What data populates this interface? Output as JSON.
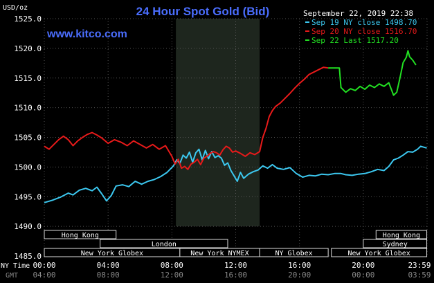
{
  "chart_data": {
    "type": "line",
    "title": "24 Hour Spot Gold (Bid)",
    "watermark": "www.kitco.com",
    "date_label": "September 22, 2019 22:38",
    "y_unit": "USD/oz",
    "ylim": [
      1485,
      1525
    ],
    "yticks": [
      1485,
      1490,
      1495,
      1500,
      1505,
      1510,
      1515,
      1520,
      1525
    ],
    "ytick_labels": [
      "1485.0",
      "1490.0",
      "1495.0",
      "1500.0",
      "1505.0",
      "1510.0",
      "1515.0",
      "1520.0",
      "1525.0"
    ],
    "xlim": [
      0,
      24
    ],
    "xticks": [
      0,
      4,
      8,
      12,
      16,
      20,
      24
    ],
    "ny_time_title": "NY Time",
    "gmt_title": "GMT",
    "ny_time_labels": [
      "00:00",
      "04:00",
      "08:00",
      "12:00",
      "16:00",
      "20:00",
      "23:59"
    ],
    "gmt_labels": [
      "04:00",
      "08:00",
      "12:00",
      "16:00",
      "20:00",
      "00:00",
      "03:59"
    ],
    "shaded_hours": [
      8.25,
      13.5
    ],
    "grid": true,
    "series": [
      {
        "name": "Sep 19 NY close 1498.70",
        "color": "#3cc8f0",
        "points": [
          [
            0,
            1494.0
          ],
          [
            0.5,
            1494.4
          ],
          [
            1.0,
            1494.9
          ],
          [
            1.5,
            1495.6
          ],
          [
            1.8,
            1495.3
          ],
          [
            2.2,
            1496.1
          ],
          [
            2.6,
            1496.4
          ],
          [
            3.0,
            1496.0
          ],
          [
            3.3,
            1496.6
          ],
          [
            3.6,
            1495.5
          ],
          [
            3.9,
            1494.3
          ],
          [
            4.2,
            1495.2
          ],
          [
            4.5,
            1496.8
          ],
          [
            4.9,
            1497.0
          ],
          [
            5.3,
            1496.7
          ],
          [
            5.7,
            1497.6
          ],
          [
            6.1,
            1497.1
          ],
          [
            6.5,
            1497.6
          ],
          [
            6.9,
            1497.9
          ],
          [
            7.3,
            1498.4
          ],
          [
            7.7,
            1499.1
          ],
          [
            8.1,
            1500.2
          ],
          [
            8.3,
            1501.2
          ],
          [
            8.5,
            1500.6
          ],
          [
            8.7,
            1502.0
          ],
          [
            8.9,
            1501.5
          ],
          [
            9.1,
            1502.5
          ],
          [
            9.3,
            1500.8
          ],
          [
            9.5,
            1502.4
          ],
          [
            9.7,
            1503.0
          ],
          [
            9.9,
            1501.2
          ],
          [
            10.1,
            1502.8
          ],
          [
            10.3,
            1501.4
          ],
          [
            10.5,
            1502.6
          ],
          [
            10.7,
            1501.6
          ],
          [
            10.9,
            1501.9
          ],
          [
            11.1,
            1501.5
          ],
          [
            11.3,
            1500.3
          ],
          [
            11.5,
            1500.7
          ],
          [
            11.7,
            1499.4
          ],
          [
            11.9,
            1498.5
          ],
          [
            12.1,
            1497.6
          ],
          [
            12.3,
            1499.1
          ],
          [
            12.5,
            1498.1
          ],
          [
            12.8,
            1498.8
          ],
          [
            13.1,
            1499.2
          ],
          [
            13.4,
            1499.5
          ],
          [
            13.7,
            1500.2
          ],
          [
            14.0,
            1499.8
          ],
          [
            14.3,
            1500.4
          ],
          [
            14.6,
            1499.8
          ],
          [
            15.0,
            1499.6
          ],
          [
            15.4,
            1499.9
          ],
          [
            15.8,
            1498.9
          ],
          [
            16.2,
            1498.3
          ],
          [
            16.6,
            1498.6
          ],
          [
            17.0,
            1498.5
          ],
          [
            17.4,
            1498.8
          ],
          [
            17.8,
            1498.7
          ],
          [
            18.2,
            1498.9
          ],
          [
            18.6,
            1498.9
          ],
          [
            18.9,
            1498.7
          ],
          [
            19.3,
            1498.6
          ],
          [
            19.7,
            1498.8
          ],
          [
            20.1,
            1498.9
          ],
          [
            20.5,
            1499.2
          ],
          [
            20.9,
            1499.6
          ],
          [
            21.3,
            1499.4
          ],
          [
            21.6,
            1500.1
          ],
          [
            21.9,
            1501.2
          ],
          [
            22.2,
            1501.5
          ],
          [
            22.5,
            1502.0
          ],
          [
            22.8,
            1502.6
          ],
          [
            23.1,
            1502.5
          ],
          [
            23.4,
            1503.0
          ],
          [
            23.6,
            1503.5
          ],
          [
            23.98,
            1503.2
          ]
        ]
      },
      {
        "name": "Sep 20 NY close 1516.70",
        "color": "#e81a1a",
        "points": [
          [
            0,
            1503.5
          ],
          [
            0.3,
            1503.0
          ],
          [
            0.6,
            1503.8
          ],
          [
            0.9,
            1504.6
          ],
          [
            1.2,
            1505.2
          ],
          [
            1.5,
            1504.6
          ],
          [
            1.8,
            1503.6
          ],
          [
            2.1,
            1504.4
          ],
          [
            2.4,
            1505.0
          ],
          [
            2.7,
            1505.5
          ],
          [
            3.0,
            1505.8
          ],
          [
            3.3,
            1505.4
          ],
          [
            3.6,
            1504.9
          ],
          [
            4.0,
            1504.0
          ],
          [
            4.4,
            1504.6
          ],
          [
            4.8,
            1504.2
          ],
          [
            5.2,
            1503.6
          ],
          [
            5.6,
            1504.4
          ],
          [
            6.0,
            1503.8
          ],
          [
            6.4,
            1503.2
          ],
          [
            6.8,
            1503.8
          ],
          [
            7.2,
            1503.0
          ],
          [
            7.6,
            1503.6
          ],
          [
            8.0,
            1501.8
          ],
          [
            8.2,
            1500.5
          ],
          [
            8.4,
            1501.3
          ],
          [
            8.6,
            1499.8
          ],
          [
            8.8,
            1500.1
          ],
          [
            9.0,
            1499.6
          ],
          [
            9.2,
            1500.5
          ],
          [
            9.4,
            1500.8
          ],
          [
            9.6,
            1501.3
          ],
          [
            9.8,
            1500.4
          ],
          [
            10.0,
            1501.5
          ],
          [
            10.2,
            1501.8
          ],
          [
            10.4,
            1502.3
          ],
          [
            10.6,
            1502.6
          ],
          [
            10.8,
            1502.4
          ],
          [
            11.0,
            1502.0
          ],
          [
            11.2,
            1502.9
          ],
          [
            11.4,
            1503.5
          ],
          [
            11.6,
            1503.2
          ],
          [
            11.8,
            1502.5
          ],
          [
            12.0,
            1502.7
          ],
          [
            12.3,
            1502.3
          ],
          [
            12.6,
            1501.8
          ],
          [
            12.9,
            1502.4
          ],
          [
            13.2,
            1502.1
          ],
          [
            13.5,
            1502.6
          ],
          [
            13.7,
            1505.0
          ],
          [
            13.9,
            1506.5
          ],
          [
            14.1,
            1508.5
          ],
          [
            14.3,
            1509.5
          ],
          [
            14.5,
            1510.2
          ],
          [
            14.8,
            1510.8
          ],
          [
            15.1,
            1511.6
          ],
          [
            15.4,
            1512.4
          ],
          [
            15.7,
            1513.3
          ],
          [
            16.0,
            1514.1
          ],
          [
            16.3,
            1514.8
          ],
          [
            16.6,
            1515.6
          ],
          [
            16.9,
            1516.0
          ],
          [
            17.2,
            1516.4
          ],
          [
            17.5,
            1516.8
          ],
          [
            17.8,
            1516.7
          ]
        ]
      },
      {
        "name": "Sep 22 Last 1517.20",
        "color": "#22e022",
        "points": [
          [
            17.8,
            1516.7
          ],
          [
            18.5,
            1516.7
          ],
          [
            18.6,
            1513.4
          ],
          [
            18.9,
            1512.6
          ],
          [
            19.2,
            1513.2
          ],
          [
            19.5,
            1512.9
          ],
          [
            19.8,
            1513.6
          ],
          [
            20.1,
            1513.1
          ],
          [
            20.4,
            1513.8
          ],
          [
            20.7,
            1513.4
          ],
          [
            21.0,
            1514.0
          ],
          [
            21.3,
            1513.6
          ],
          [
            21.6,
            1514.2
          ],
          [
            21.9,
            1512.1
          ],
          [
            22.1,
            1512.6
          ],
          [
            22.3,
            1515.0
          ],
          [
            22.5,
            1517.6
          ],
          [
            22.7,
            1518.5
          ],
          [
            22.8,
            1519.6
          ],
          [
            22.9,
            1518.6
          ],
          [
            23.1,
            1518.0
          ],
          [
            23.3,
            1517.2
          ]
        ]
      }
    ],
    "sessions": [
      {
        "label": "Hong Kong",
        "start": 0,
        "end": 4.5,
        "row": 0
      },
      {
        "label": "London",
        "start": 3.5,
        "end": 11.5,
        "row": 1
      },
      {
        "label": "New York Globex",
        "start": 0,
        "end": 8.5,
        "row": 2
      },
      {
        "label": "New York NYMEX",
        "start": 8.5,
        "end": 13.5,
        "row": 2
      },
      {
        "label": "NY Globex",
        "start": 13.5,
        "end": 17.8,
        "row": 2
      },
      {
        "label": "Hong Kong",
        "start": 20.8,
        "end": 23.98,
        "row": 0
      },
      {
        "label": "Sydney",
        "start": 20.0,
        "end": 23.98,
        "row": 1
      },
      {
        "label": "New York Globex",
        "start": 18.0,
        "end": 23.98,
        "row": 2
      }
    ]
  }
}
